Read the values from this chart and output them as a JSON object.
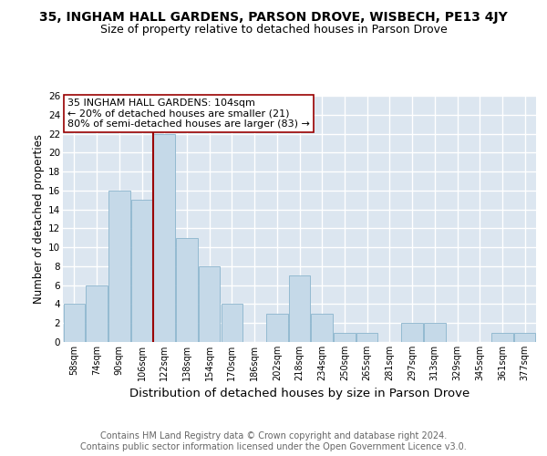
{
  "title": "35, INGHAM HALL GARDENS, PARSON DROVE, WISBECH, PE13 4JY",
  "subtitle": "Size of property relative to detached houses in Parson Drove",
  "xlabel": "Distribution of detached houses by size in Parson Drove",
  "ylabel": "Number of detached properties",
  "bar_labels": [
    "58sqm",
    "74sqm",
    "90sqm",
    "106sqm",
    "122sqm",
    "138sqm",
    "154sqm",
    "170sqm",
    "186sqm",
    "202sqm",
    "218sqm",
    "234sqm",
    "250sqm",
    "265sqm",
    "281sqm",
    "297sqm",
    "313sqm",
    "329sqm",
    "345sqm",
    "361sqm",
    "377sqm"
  ],
  "bar_values": [
    4,
    6,
    16,
    15,
    22,
    11,
    8,
    4,
    0,
    3,
    7,
    3,
    1,
    1,
    0,
    2,
    2,
    0,
    0,
    1,
    1
  ],
  "bar_color": "#c5d9e8",
  "bar_edge_color": "#8ab4cc",
  "vline_x": 3.5,
  "vline_color": "#990000",
  "annotation_text": "35 INGHAM HALL GARDENS: 104sqm\n← 20% of detached houses are smaller (21)\n80% of semi-detached houses are larger (83) →",
  "annotation_box_color": "white",
  "annotation_box_edge": "#990000",
  "ylim": [
    0,
    26
  ],
  "yticks": [
    0,
    2,
    4,
    6,
    8,
    10,
    12,
    14,
    16,
    18,
    20,
    22,
    24,
    26
  ],
  "background_color": "#dce6f0",
  "grid_color": "white",
  "title_fontsize": 10,
  "subtitle_fontsize": 9,
  "xlabel_fontsize": 9.5,
  "ylabel_fontsize": 8.5,
  "footer_text": "Contains HM Land Registry data © Crown copyright and database right 2024.\nContains public sector information licensed under the Open Government Licence v3.0.",
  "footer_fontsize": 7
}
